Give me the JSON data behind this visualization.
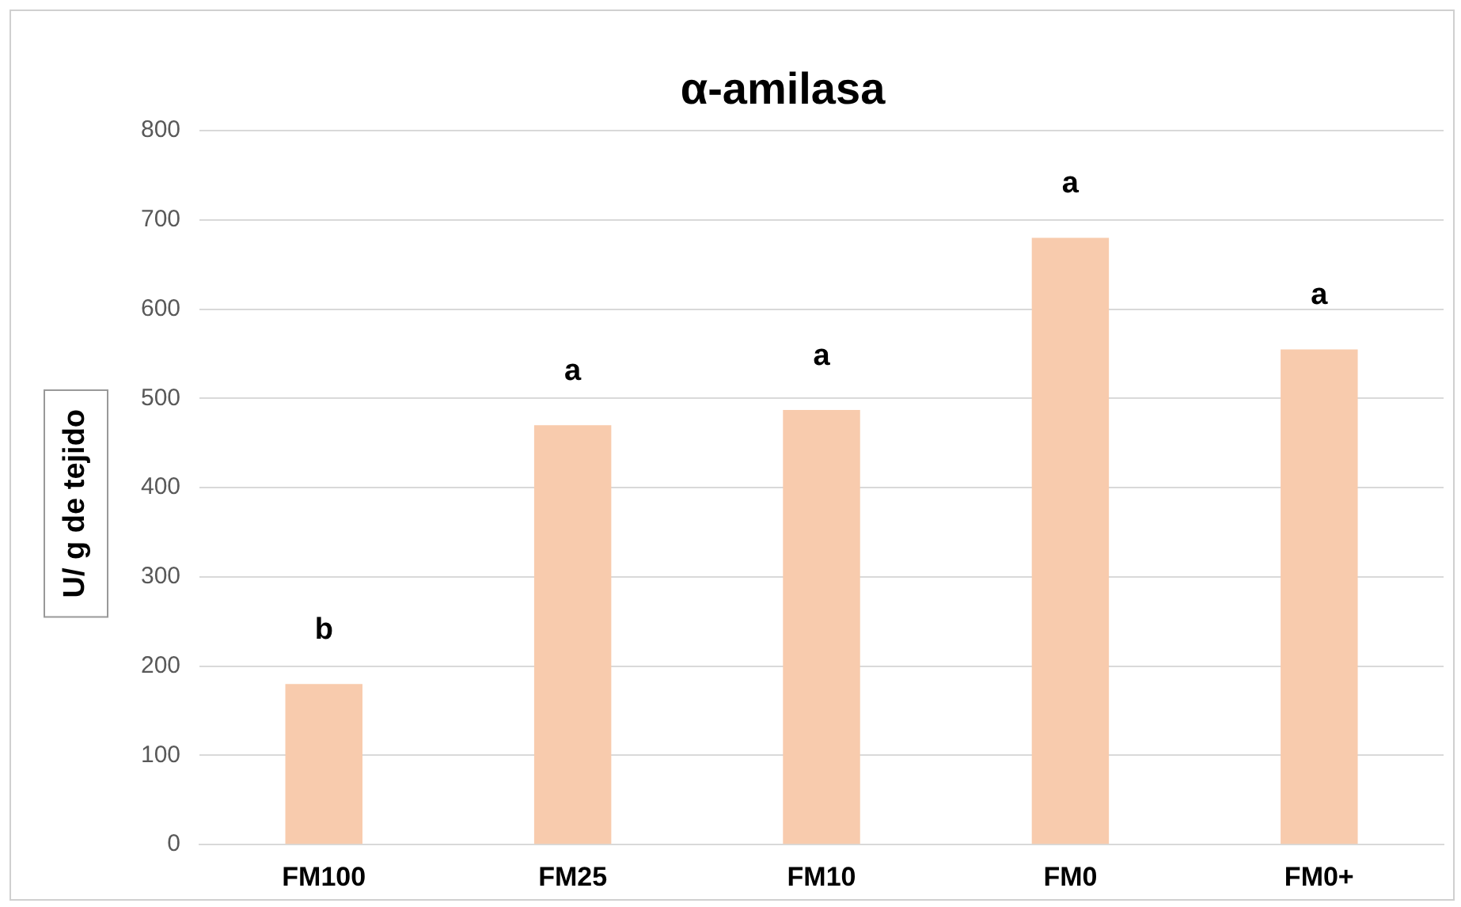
{
  "chart_data": {
    "type": "bar",
    "title": "α-amilasa",
    "ylabel": "U/ g de tejido",
    "categories": [
      "FM100",
      "FM25",
      "FM10",
      "FM0",
      "FM0+"
    ],
    "values": [
      180,
      470,
      487,
      680,
      555
    ],
    "color": "#f8cbad",
    "ylim": [
      0,
      800
    ],
    "yticks": [
      0,
      100,
      200,
      300,
      400,
      500,
      600,
      700,
      800
    ],
    "grid": "y",
    "annotations": [
      "b",
      "a",
      "a",
      "a",
      "a"
    ]
  }
}
